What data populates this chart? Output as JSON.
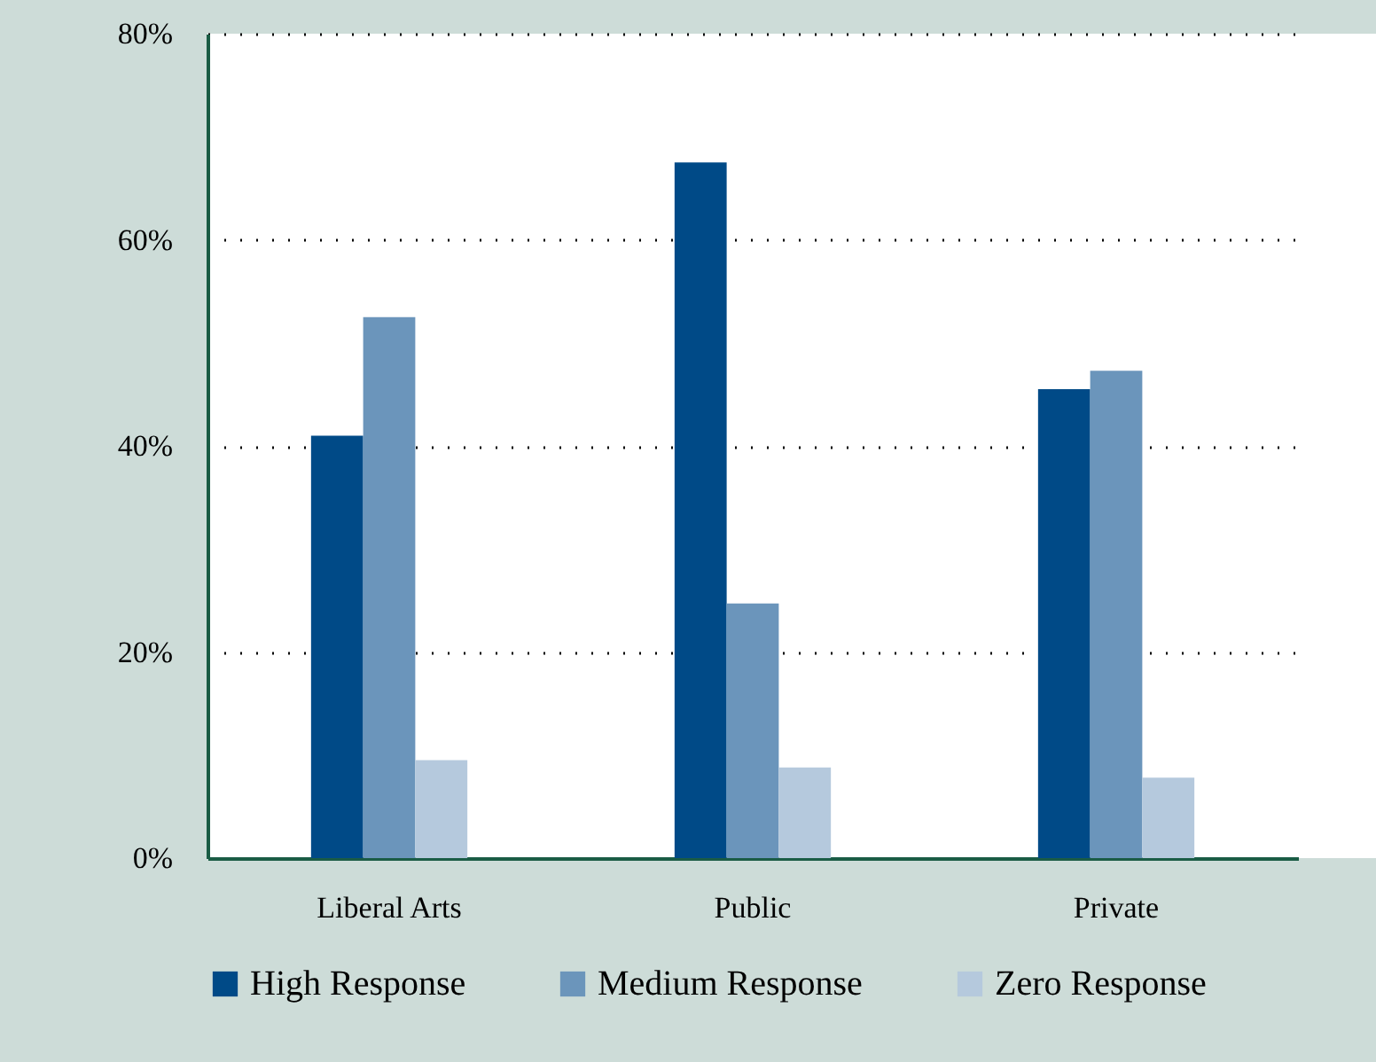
{
  "chart_data": {
    "type": "bar",
    "categories": [
      "Liberal Arts",
      "Public",
      "Private"
    ],
    "series": [
      {
        "name": "High Response",
        "color": "#004a87",
        "values": [
          41,
          67.5,
          45.5
        ]
      },
      {
        "name": "Medium Response",
        "color": "#6b95bb",
        "values": [
          52.5,
          24.7,
          47.3
        ]
      },
      {
        "name": "Zero Response",
        "color": "#b5c9dd",
        "values": [
          9.5,
          8.8,
          7.8
        ]
      }
    ],
    "ylim": [
      0,
      80
    ],
    "yticks": [
      {
        "value": 0,
        "label": "0%"
      },
      {
        "value": 20,
        "label": "20%"
      },
      {
        "value": 40,
        "label": "40%"
      },
      {
        "value": 60,
        "label": "60%"
      },
      {
        "value": 80,
        "label": "80%"
      }
    ],
    "grid": "y",
    "legend": "bottom"
  }
}
